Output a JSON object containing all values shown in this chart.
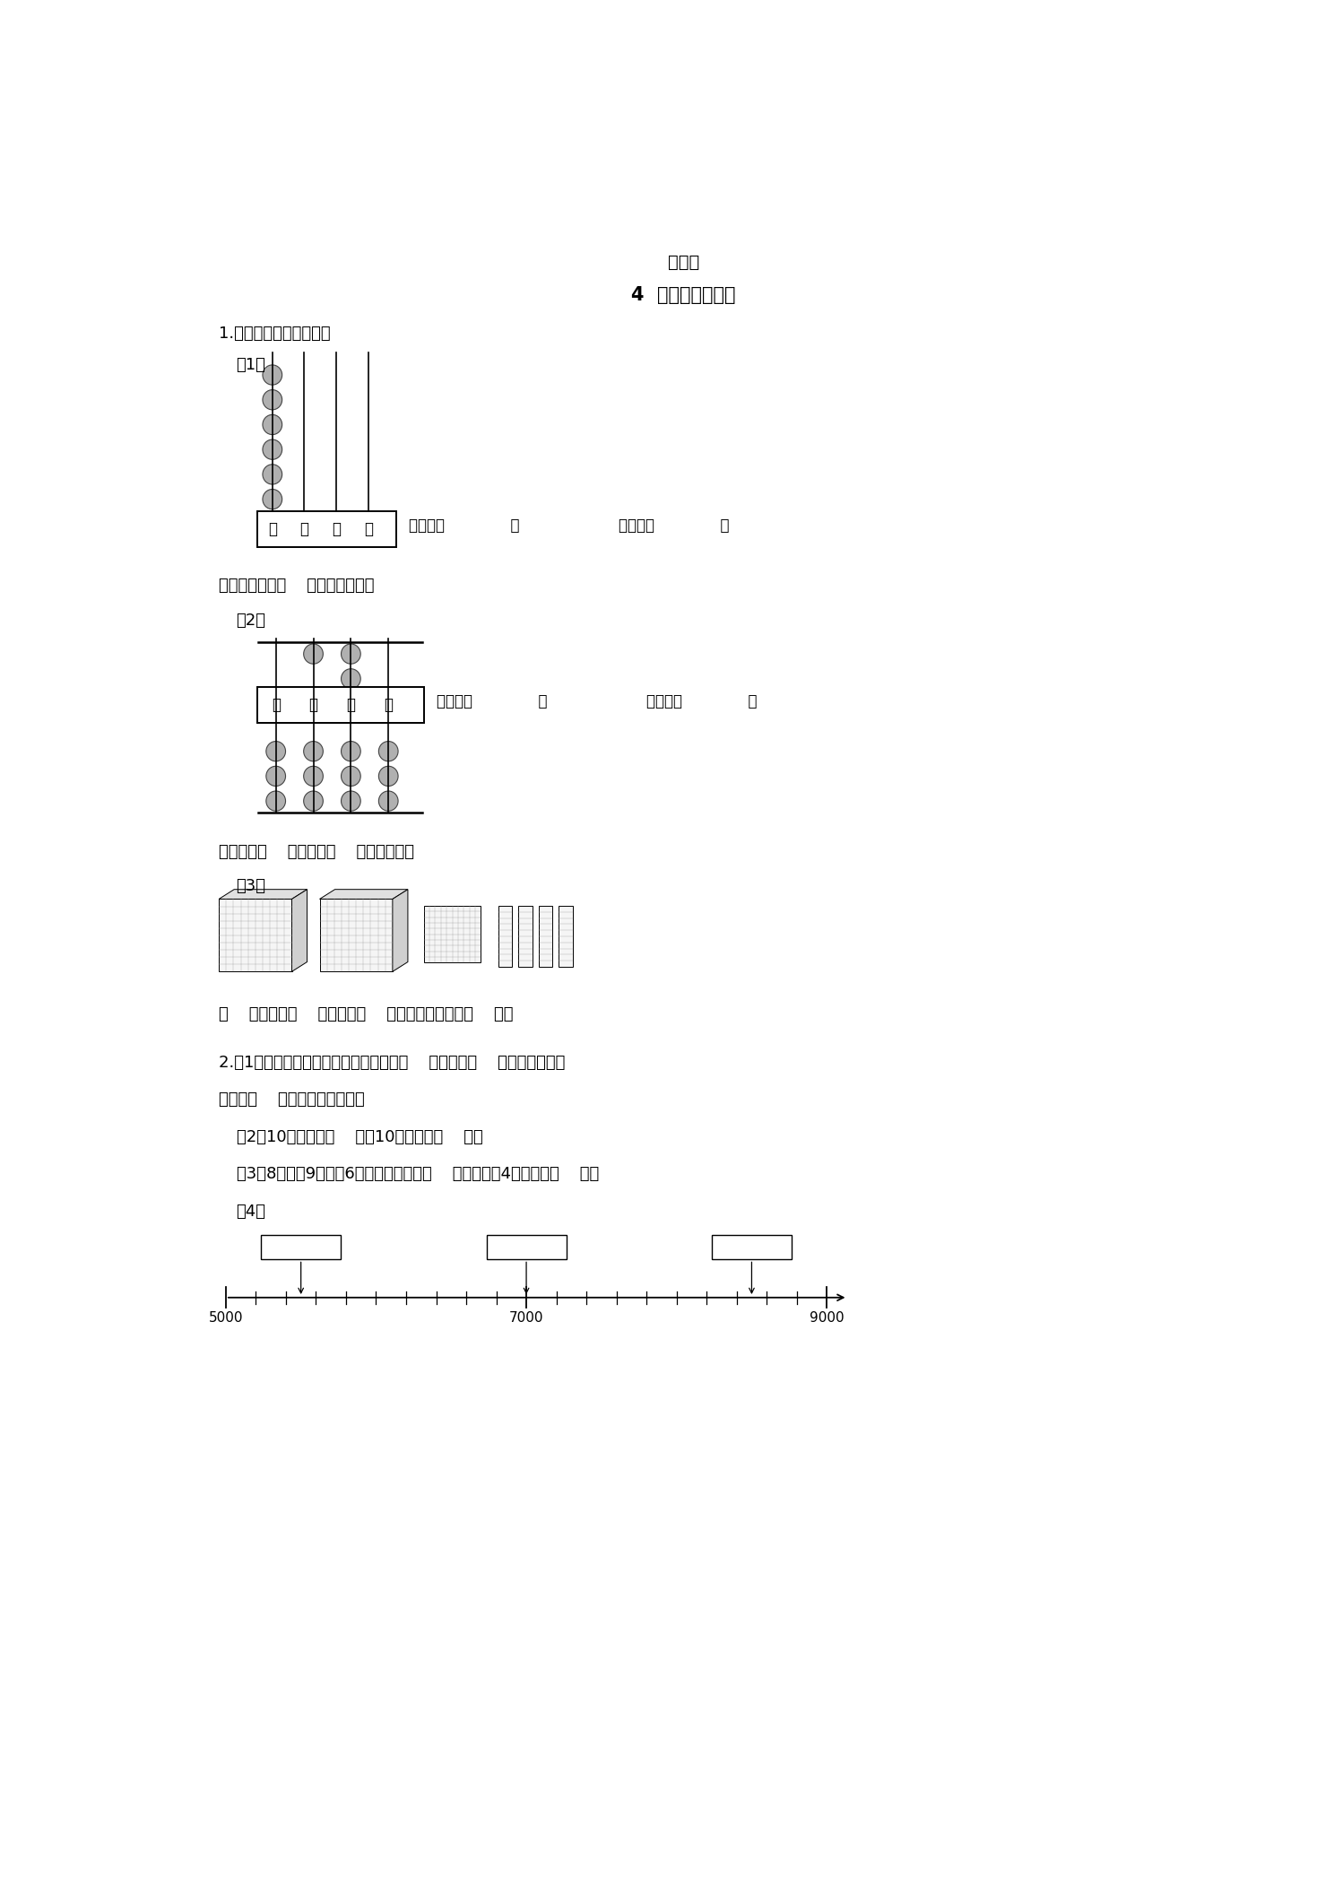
{
  "title": "课时练",
  "subtitle": "4  认识万以内的数",
  "q1_label": "1.看图写一写，读一读。",
  "q1_1_label": "（1）",
  "q1_1_extra": "这个数再加上（    ）个千是一万。",
  "q1_2_label": "（2）",
  "q1_2_extra": "这个数由（    ）个千和（    ）个百组成。",
  "q1_3_label": "（3）",
  "q1_3_text": "（    ）个千、（    ）个百和（    ）个十组成的数是（    ）。",
  "abacus1_labels": [
    "千",
    "百",
    "十",
    "个"
  ],
  "abacus2_labels": [
    "千",
    "百",
    "十",
    "个"
  ],
  "write_text": "写作：（              ）",
  "read_text": "读作：（              ）",
  "q2_1a": "2.（1）一个数，从右边数起，第一位是（    ）位，第（    ）位是万位，最",
  "q2_1b": "高位是（    ）位的数是四位数。",
  "q2_2": "（2）10个一百是（    ），10个一千是（    ）。",
  "q2_3": "（3）8个千、9个百、6个十组成的数是（    ），再添上4个十就是（    ）。",
  "q2_4_label": "（4）"
}
